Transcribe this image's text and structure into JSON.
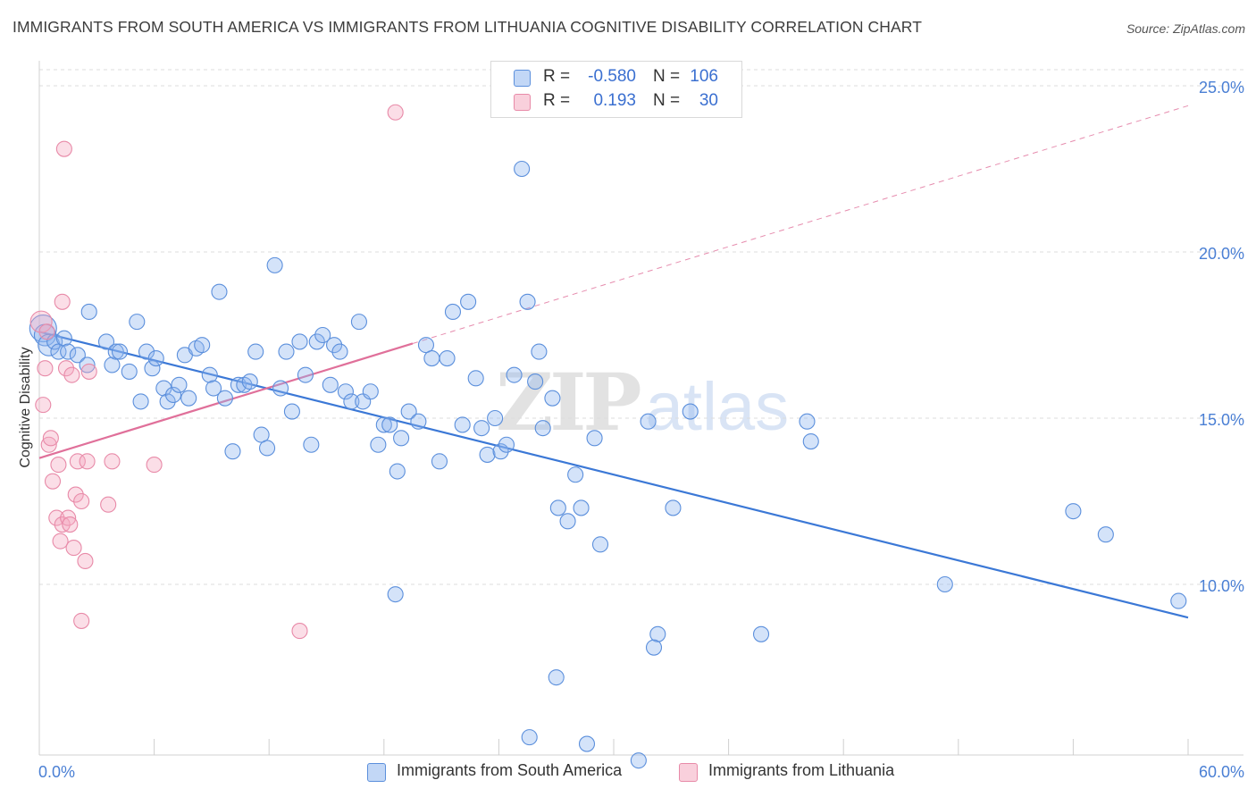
{
  "title": "IMMIGRANTS FROM SOUTH AMERICA VS IMMIGRANTS FROM LITHUANIA COGNITIVE DISABILITY CORRELATION CHART",
  "source": "Source: ZipAtlas.com",
  "watermark": {
    "zip": "ZIP",
    "atlas": "atlas"
  },
  "legend": {
    "r_label": "R =",
    "n_label": "N =",
    "rows": [
      {
        "r": "-0.580",
        "n": "106",
        "color": "#8fb6ef"
      },
      {
        "r": "0.193",
        "n": "30",
        "color": "#f4a9bf"
      }
    ]
  },
  "bottom_legend": [
    {
      "label": "Immigrants from South America",
      "color": "#8fb6ef"
    },
    {
      "label": "Immigrants from Lithuania",
      "color": "#f4a9bf"
    }
  ],
  "axis": {
    "x_min_label": "0.0%",
    "x_max_label": "60.0%",
    "y_label": "Cognitive Disability"
  },
  "colors": {
    "blue_fill": "rgba(143,182,239,0.38)",
    "blue_stroke": "#5b8fdc",
    "blue_line": "#3b78d6",
    "pink_fill": "rgba(244,169,191,0.38)",
    "pink_stroke": "#e88aa8",
    "pink_line": "#e0709a",
    "grid": "#dcdcdc"
  },
  "chart_data": {
    "type": "scatter",
    "title": "IMMIGRANTS FROM SOUTH AMERICA VS IMMIGRANTS FROM LITHUANIA COGNITIVE DISABILITY CORRELATION CHART",
    "xlabel": "",
    "ylabel": "Cognitive Disability",
    "xlim": [
      0,
      60
    ],
    "ylim": [
      5,
      26
    ],
    "yticks": [
      {
        "value": 10,
        "label": "10.0%"
      },
      {
        "value": 15,
        "label": "15.0%"
      },
      {
        "value": 20,
        "label": "20.0%"
      },
      {
        "value": 25,
        "label": "25.0%"
      }
    ],
    "series": [
      {
        "name": "Immigrants from South America",
        "r": -0.58,
        "n": 106,
        "trend": {
          "x": [
            0,
            60
          ],
          "y": [
            17.6,
            9.0
          ]
        },
        "points": [
          [
            0.2,
            17.7,
            3
          ],
          [
            0.3,
            17.5,
            2
          ],
          [
            0.5,
            17.2,
            2
          ],
          [
            0.8,
            17.3,
            1
          ],
          [
            1.0,
            17.0,
            1
          ],
          [
            1.3,
            17.4,
            1
          ],
          [
            1.5,
            17.0,
            1
          ],
          [
            2.0,
            16.9,
            1
          ],
          [
            2.5,
            16.6,
            1
          ],
          [
            2.6,
            18.2,
            1
          ],
          [
            3.5,
            17.3,
            1
          ],
          [
            3.8,
            16.6,
            1
          ],
          [
            4.0,
            17.0,
            1
          ],
          [
            4.2,
            17.0,
            1
          ],
          [
            4.7,
            16.4,
            1
          ],
          [
            5.1,
            17.9,
            1
          ],
          [
            5.3,
            15.5,
            1
          ],
          [
            5.6,
            17.0,
            1
          ],
          [
            5.9,
            16.5,
            1
          ],
          [
            6.1,
            16.8,
            1
          ],
          [
            6.5,
            15.9,
            1
          ],
          [
            6.7,
            15.5,
            1
          ],
          [
            7.0,
            15.7,
            1
          ],
          [
            7.3,
            16.0,
            1
          ],
          [
            7.8,
            15.6,
            1
          ],
          [
            7.6,
            16.9,
            1
          ],
          [
            8.2,
            17.1,
            1
          ],
          [
            8.5,
            17.2,
            1
          ],
          [
            8.9,
            16.3,
            1
          ],
          [
            9.1,
            15.9,
            1
          ],
          [
            9.4,
            18.8,
            1
          ],
          [
            9.7,
            15.6,
            1
          ],
          [
            10.1,
            14.0,
            1
          ],
          [
            10.4,
            16.0,
            1
          ],
          [
            10.7,
            16.0,
            1
          ],
          [
            11.0,
            16.1,
            1
          ],
          [
            11.3,
            17.0,
            1
          ],
          [
            11.6,
            14.5,
            1
          ],
          [
            11.9,
            14.1,
            1
          ],
          [
            12.3,
            19.6,
            1
          ],
          [
            12.6,
            15.9,
            1
          ],
          [
            12.9,
            17.0,
            1
          ],
          [
            13.2,
            15.2,
            1
          ],
          [
            13.6,
            17.3,
            1
          ],
          [
            13.9,
            16.3,
            1
          ],
          [
            14.2,
            14.2,
            1
          ],
          [
            14.5,
            17.3,
            1
          ],
          [
            14.8,
            17.5,
            1
          ],
          [
            15.2,
            16.0,
            1
          ],
          [
            15.4,
            17.2,
            1
          ],
          [
            15.7,
            17.0,
            1
          ],
          [
            16.0,
            15.8,
            1
          ],
          [
            16.3,
            15.5,
            1
          ],
          [
            16.7,
            17.9,
            1
          ],
          [
            16.9,
            15.5,
            1
          ],
          [
            17.3,
            15.8,
            1
          ],
          [
            17.7,
            14.2,
            1
          ],
          [
            18.0,
            14.8,
            1
          ],
          [
            18.3,
            14.8,
            1
          ],
          [
            18.7,
            13.4,
            1
          ],
          [
            18.9,
            14.4,
            1
          ],
          [
            19.3,
            15.2,
            1
          ],
          [
            19.8,
            14.9,
            1
          ],
          [
            20.2,
            17.2,
            1
          ],
          [
            20.5,
            16.8,
            1
          ],
          [
            20.9,
            13.7,
            1
          ],
          [
            21.3,
            16.8,
            1
          ],
          [
            21.6,
            18.2,
            1
          ],
          [
            22.1,
            14.8,
            1
          ],
          [
            22.4,
            18.5,
            1
          ],
          [
            22.8,
            16.2,
            1
          ],
          [
            23.1,
            14.7,
            1
          ],
          [
            23.4,
            13.9,
            1
          ],
          [
            23.8,
            15.0,
            1
          ],
          [
            24.1,
            14.0,
            1
          ],
          [
            24.4,
            14.2,
            1
          ],
          [
            24.8,
            16.3,
            1
          ],
          [
            25.2,
            22.5,
            1
          ],
          [
            25.5,
            18.5,
            1
          ],
          [
            25.9,
            16.1,
            1
          ],
          [
            26.1,
            17.0,
            1
          ],
          [
            26.3,
            14.7,
            1
          ],
          [
            26.8,
            15.6,
            1
          ],
          [
            27.1,
            12.3,
            1
          ],
          [
            27.6,
            11.9,
            1
          ],
          [
            28.0,
            13.3,
            1
          ],
          [
            28.3,
            12.3,
            1
          ],
          [
            29.0,
            14.4,
            1
          ],
          [
            29.3,
            11.2,
            1
          ],
          [
            31.8,
            14.9,
            1
          ],
          [
            32.3,
            8.5,
            1
          ],
          [
            33.1,
            12.3,
            1
          ],
          [
            34.0,
            15.2,
            1
          ],
          [
            37.7,
            8.5,
            1
          ],
          [
            40.1,
            14.9,
            1
          ],
          [
            40.3,
            14.3,
            1
          ],
          [
            47.3,
            10.0,
            1
          ],
          [
            54.0,
            12.2,
            1
          ],
          [
            55.7,
            11.5,
            1
          ],
          [
            59.5,
            9.5,
            1
          ],
          [
            18.6,
            9.7,
            1
          ],
          [
            27.0,
            7.2,
            1
          ],
          [
            28.6,
            5.2,
            1
          ],
          [
            32.1,
            8.1,
            1
          ],
          [
            25.6,
            5.4,
            1
          ],
          [
            31.3,
            4.7,
            1
          ]
        ]
      },
      {
        "name": "Immigrants from Lithuania",
        "r": 0.193,
        "n": 30,
        "trend": {
          "x": [
            0,
            60
          ],
          "y": [
            13.8,
            24.4
          ],
          "solid_to_x": 19.5
        },
        "points": [
          [
            0.1,
            17.9,
            2
          ],
          [
            0.2,
            15.4,
            1
          ],
          [
            0.3,
            16.5,
            1
          ],
          [
            0.5,
            14.2,
            1
          ],
          [
            0.6,
            14.4,
            1
          ],
          [
            0.7,
            13.1,
            1
          ],
          [
            0.9,
            12.0,
            1
          ],
          [
            1.0,
            13.6,
            1
          ],
          [
            1.1,
            11.3,
            1
          ],
          [
            1.2,
            18.5,
            1
          ],
          [
            1.2,
            11.8,
            1
          ],
          [
            1.3,
            23.1,
            1
          ],
          [
            1.4,
            16.5,
            1
          ],
          [
            1.5,
            12.0,
            1
          ],
          [
            1.6,
            11.8,
            1
          ],
          [
            1.7,
            16.3,
            1
          ],
          [
            1.8,
            11.1,
            1
          ],
          [
            1.9,
            12.7,
            1
          ],
          [
            2.0,
            13.7,
            1
          ],
          [
            2.2,
            12.5,
            1
          ],
          [
            2.4,
            10.7,
            1
          ],
          [
            2.5,
            13.7,
            1
          ],
          [
            2.6,
            16.4,
            1
          ],
          [
            2.2,
            8.9,
            1
          ],
          [
            3.6,
            12.4,
            1
          ],
          [
            3.8,
            13.7,
            1
          ],
          [
            6.0,
            13.6,
            1
          ],
          [
            13.6,
            8.6,
            1
          ],
          [
            18.6,
            24.2,
            1
          ],
          [
            0.4,
            17.6,
            1
          ]
        ]
      }
    ]
  }
}
